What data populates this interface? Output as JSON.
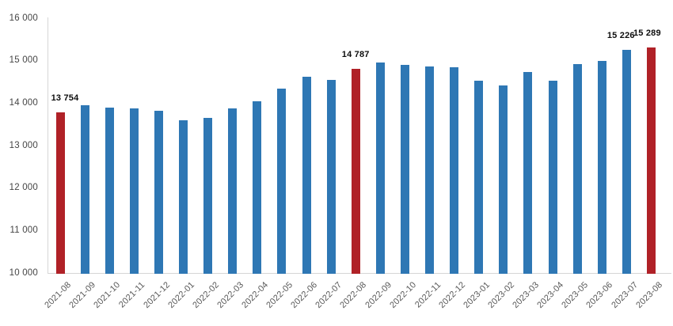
{
  "chart_data": {
    "type": "bar",
    "title": "",
    "xlabel": "",
    "ylabel": "",
    "categories": [
      "2021-08",
      "2021-09",
      "2021-10",
      "2021-11",
      "2021-12",
      "2022-01",
      "2022-02",
      "2022-03",
      "2022-04",
      "2022-05",
      "2022-06",
      "2022-07",
      "2022-08",
      "2022-09",
      "2022-10",
      "2022-11",
      "2022-12",
      "2023-01",
      "2023-02",
      "2023-03",
      "2023-04",
      "2023-05",
      "2023-06",
      "2023-07",
      "2023-08"
    ],
    "values": [
      13754,
      13920,
      13870,
      13840,
      13790,
      13570,
      13620,
      13850,
      14010,
      14310,
      14600,
      14520,
      14787,
      14920,
      14880,
      14830,
      14810,
      14500,
      14390,
      14710,
      14500,
      14900,
      14960,
      15226,
      15289
    ],
    "highlight_indices": [
      0,
      12,
      24
    ],
    "data_labels": [
      {
        "index": 0,
        "text": "13 754"
      },
      {
        "index": 12,
        "text": "14 787"
      },
      {
        "index": 23,
        "text": "15 226"
      },
      {
        "index": 24,
        "text": "15 289"
      }
    ],
    "y_axis": {
      "min": 10000,
      "max": 16000,
      "step": 1000,
      "tick_labels": [
        "10 000",
        "11 000",
        "12 000",
        "13 000",
        "14 000",
        "15 000",
        "16 000"
      ]
    },
    "grid": false,
    "legend": false,
    "colors": {
      "bar": "#2e77b4",
      "highlight": "#b02127",
      "axis_line": "#d6d6d6",
      "y_tick_text": "#454545",
      "x_tick_text": "#595959",
      "data_label_text": "#0d0d0d"
    }
  }
}
